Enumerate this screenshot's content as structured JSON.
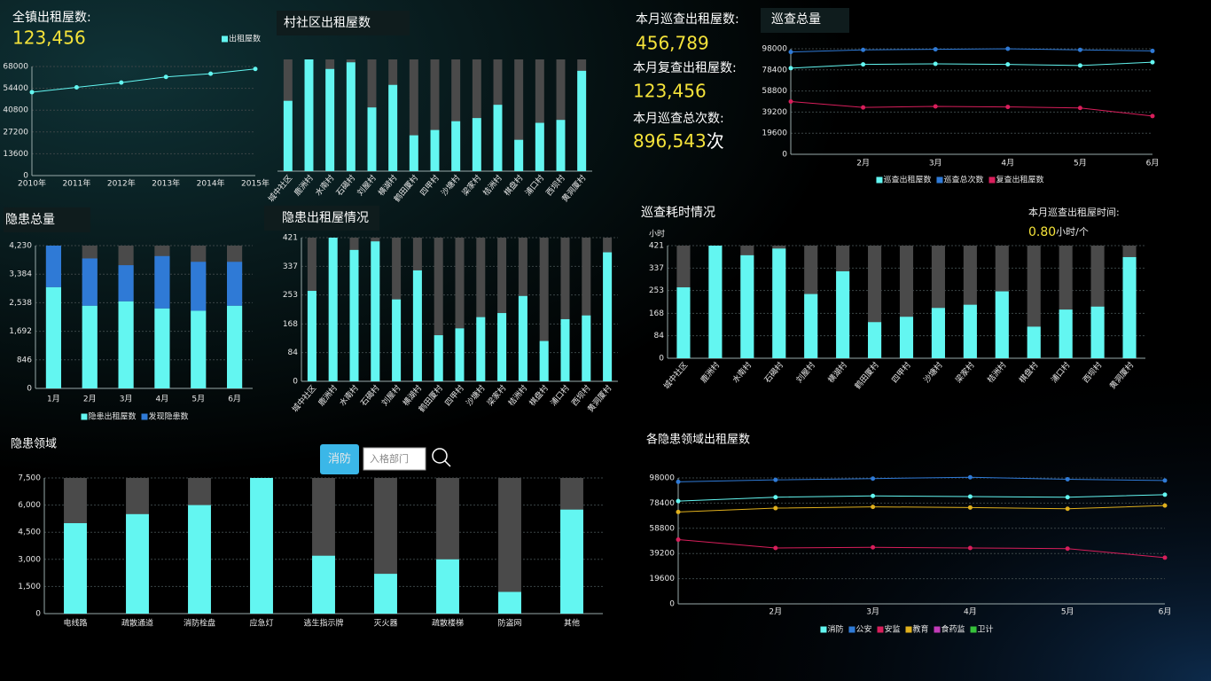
{
  "kpis": [
    {
      "label": "全镇出租屋数:",
      "value": "123,456"
    },
    {
      "label": "本月巡查出租屋数:",
      "value": "456,789"
    },
    {
      "label": "本月复查出租屋数:",
      "value": "123,456"
    },
    {
      "label": "本月巡查总次数:",
      "value": "896,543",
      "unit": "次"
    }
  ],
  "patrol_time": {
    "label": "本月巡查出租屋时间:",
    "value": "0.80",
    "unit": "小时/个"
  },
  "filter": {
    "button": "消防",
    "placeholder": "入格部门"
  },
  "chart_data": [
    {
      "type": "line",
      "categories": [
        "2010年",
        "2011年",
        "2012年",
        "2013年",
        "2014年",
        "2015年"
      ],
      "series": [
        {
          "name": "出租屋数",
          "color": "#63f6f1",
          "values": [
            52000,
            55000,
            58000,
            61500,
            63500,
            66500
          ]
        }
      ],
      "ylim": [
        0,
        68000
      ],
      "yticks": [
        0,
        13600,
        27200,
        40800,
        54400,
        68000
      ],
      "grid": true,
      "legend": "top-right"
    },
    {
      "type": "bar",
      "title": "村社区出租屋数",
      "categories": [
        "城中社区",
        "鹿洲村",
        "水南村",
        "石碣村",
        "刘屋村",
        "横湖村",
        "鹤田厦村",
        "四甲村",
        "沙塘村",
        "梁家村",
        "桔洲村",
        "棋盘村",
        "浦口村",
        "西坝村",
        "黄洞厦村"
      ],
      "series": [
        {
          "color": "#63f6f1",
          "values": [
            265,
            421,
            385,
            410,
            240,
            325,
            135,
            155,
            188,
            200,
            250,
            118,
            182,
            193,
            378
          ]
        }
      ],
      "track_color": "#4a4a4a"
    },
    {
      "type": "bar",
      "title": "隐患总量",
      "categories": [
        "1月",
        "2月",
        "3月",
        "4月",
        "5月",
        "6月"
      ],
      "series": [
        {
          "name": "隐患出租屋数",
          "color": "#63f6f1",
          "values": [
            3000,
            2450,
            2580,
            2370,
            2300,
            2450
          ]
        },
        {
          "name": "发现隐患数",
          "color": "#2f7ad6",
          "values": [
            1230,
            1400,
            1070,
            1550,
            1450,
            1300
          ]
        }
      ],
      "track_color": "#4a4a4a",
      "ylim": [
        0,
        4230
      ],
      "yticks": [
        0,
        846,
        {
          "value": 1692,
          "label": "1,692"
        },
        {
          "value": 2538,
          "label": "2,538"
        },
        {
          "value": 3384,
          "label": "3,384"
        },
        {
          "value": 4230,
          "label": "4,230"
        }
      ],
      "grid": true,
      "legend": "bottom"
    },
    {
      "type": "bar",
      "title": "隐患出租屋情况",
      "categories": [
        "城中社区",
        "鹿洲村",
        "水南村",
        "石碣村",
        "刘屋村",
        "横湖村",
        "鹤田厦村",
        "四甲村",
        "沙塘村",
        "梁家村",
        "桔洲村",
        "棋盘村",
        "浦口村",
        "西坝村",
        "黄洞厦村"
      ],
      "series": [
        {
          "color": "#63f6f1",
          "values": [
            265,
            421,
            385,
            410,
            240,
            325,
            135,
            155,
            188,
            200,
            250,
            118,
            182,
            193,
            378
          ]
        }
      ],
      "track_color": "#4a4a4a",
      "ylim": [
        0,
        421
      ],
      "yticks": [
        0,
        84,
        168,
        253,
        337,
        421
      ],
      "grid": true
    },
    {
      "type": "line",
      "title": "巡查总量",
      "categories": [
        null,
        "2月",
        "3月",
        "4月",
        "5月",
        "6月"
      ],
      "series": [
        {
          "name": "巡查出租屋数",
          "color": "#63f6f1",
          "values": [
            80000,
            83500,
            84000,
            83500,
            82500,
            85500
          ]
        },
        {
          "name": "巡查总次数",
          "color": "#2f7ad6",
          "values": [
            95000,
            97000,
            97500,
            98000,
            97000,
            96000
          ]
        },
        {
          "name": "复查出租屋数",
          "color": "#d81e5b",
          "values": [
            49000,
            43500,
            44500,
            44000,
            43000,
            35500
          ]
        }
      ],
      "ylim": [
        0,
        98000
      ],
      "yticks": [
        0,
        19600,
        39200,
        58800,
        78400,
        98000
      ],
      "grid": true,
      "legend": "bottom"
    },
    {
      "type": "bar",
      "title": "巡查耗时情况",
      "y_label": "小时",
      "categories": [
        "城中社区",
        "鹿洲村",
        "水南村",
        "石碣村",
        "刘屋村",
        "横湖村",
        "鹤田厦村",
        "四甲村",
        "沙塘村",
        "梁家村",
        "桔洲村",
        "棋盘村",
        "浦口村",
        "西坝村",
        "黄洞厦村"
      ],
      "series": [
        {
          "color": "#63f6f1",
          "values": [
            265,
            421,
            385,
            410,
            240,
            325,
            135,
            155,
            188,
            200,
            250,
            118,
            182,
            193,
            378
          ]
        }
      ],
      "track_color": "#4a4a4a",
      "ylim": [
        0,
        421
      ],
      "yticks": [
        0,
        84,
        168,
        253,
        337,
        421
      ],
      "grid": true
    },
    {
      "type": "bar",
      "title": "隐患领域",
      "categories": [
        "电线路",
        "疏散通道",
        "消防栓盘",
        "应急灯",
        "逃生指示牌",
        "灭火器",
        "疏散楼梯",
        "防盗网",
        "其他"
      ],
      "series": [
        {
          "color": "#63f6f1",
          "values": [
            5000,
            5500,
            6000,
            7500,
            3200,
            2200,
            3000,
            1200,
            5750
          ]
        }
      ],
      "track_color": "#4a4a4a",
      "ylim": [
        0,
        7500
      ],
      "yticks": [
        0,
        {
          "value": 1500,
          "label": "1,500"
        },
        {
          "value": 3000,
          "label": "3,000"
        },
        {
          "value": 4500,
          "label": "4,500"
        },
        {
          "value": 6000,
          "label": "6,000"
        },
        {
          "value": 7500,
          "label": "7,500"
        }
      ],
      "grid": true
    },
    {
      "type": "line",
      "title": "各隐患领域出租屋数",
      "categories": [
        null,
        "2月",
        "3月",
        "4月",
        "5月",
        "6月"
      ],
      "series": [
        {
          "name": "消防",
          "color": "#63f6f1",
          "values": [
            80000,
            83000,
            84000,
            83500,
            83000,
            85000
          ]
        },
        {
          "name": "公安",
          "color": "#2f7ad6",
          "values": [
            95000,
            96500,
            97500,
            98500,
            97000,
            96000
          ]
        },
        {
          "name": "安监",
          "color": "#d81e5b",
          "values": [
            50000,
            43500,
            44000,
            43500,
            43000,
            36000
          ]
        },
        {
          "name": "教育",
          "color": "#e0b01d",
          "values": [
            71500,
            74500,
            75500,
            75000,
            74000,
            76500
          ]
        },
        {
          "name": "食药监",
          "color": "#c23bb8",
          "values": [
            null,
            null,
            null,
            null,
            null,
            null
          ]
        },
        {
          "name": "卫计",
          "color": "#36c23a",
          "values": [
            null,
            null,
            null,
            null,
            null,
            null
          ]
        }
      ],
      "ylim": [
        0,
        98000
      ],
      "yticks": [
        0,
        19600,
        39200,
        58800,
        78400,
        98000
      ],
      "grid": true,
      "legend": "bottom"
    }
  ]
}
